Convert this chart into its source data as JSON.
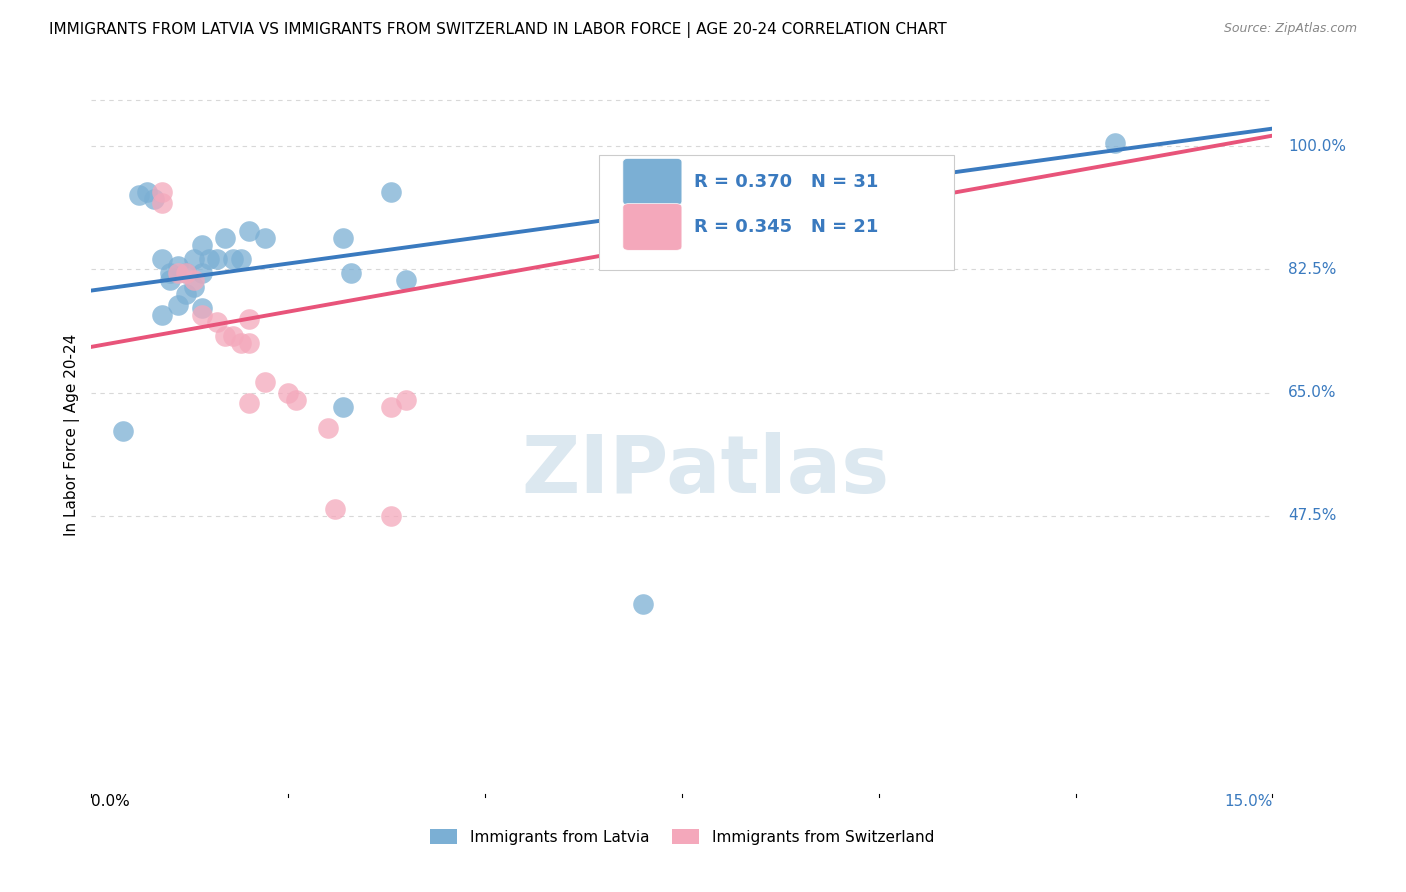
{
  "title": "IMMIGRANTS FROM LATVIA VS IMMIGRANTS FROM SWITZERLAND IN LABOR FORCE | AGE 20-24 CORRELATION CHART",
  "source": "Source: ZipAtlas.com",
  "ylabel": "In Labor Force | Age 20-24",
  "ytick_labels": [
    "100.0%",
    "82.5%",
    "65.0%",
    "47.5%"
  ],
  "ytick_values": [
    1.0,
    0.825,
    0.65,
    0.475
  ],
  "xlim": [
    0.0,
    0.15
  ],
  "ylim": [
    0.08,
    1.1
  ],
  "legend_r_latvia": "R = 0.370",
  "legend_n_latvia": "N = 31",
  "legend_r_switzerland": "R = 0.345",
  "legend_n_switzerland": "N = 21",
  "legend_label_latvia": "Immigrants from Latvia",
  "legend_label_switzerland": "Immigrants from Switzerland",
  "color_latvia": "#7bafd4",
  "color_switzerland": "#f4a8bb",
  "color_line_latvia": "#3a7abf",
  "color_line_switzerland": "#e8547a",
  "color_legend_text": "#3a7abf",
  "scatter_latvia_x": [
    0.004,
    0.006,
    0.007,
    0.008,
    0.009,
    0.009,
    0.01,
    0.01,
    0.011,
    0.011,
    0.012,
    0.012,
    0.013,
    0.013,
    0.014,
    0.014,
    0.014,
    0.015,
    0.016,
    0.017,
    0.018,
    0.019,
    0.02,
    0.022,
    0.032,
    0.033,
    0.038,
    0.04,
    0.07,
    0.13,
    0.032
  ],
  "scatter_latvia_y": [
    0.595,
    0.93,
    0.935,
    0.925,
    0.84,
    0.76,
    0.81,
    0.82,
    0.775,
    0.83,
    0.79,
    0.82,
    0.84,
    0.8,
    0.86,
    0.82,
    0.77,
    0.84,
    0.84,
    0.87,
    0.84,
    0.84,
    0.88,
    0.87,
    0.63,
    0.82,
    0.935,
    0.81,
    0.35,
    1.005,
    0.87
  ],
  "scatter_switzerland_x": [
    0.009,
    0.009,
    0.011,
    0.012,
    0.013,
    0.014,
    0.016,
    0.017,
    0.018,
    0.019,
    0.02,
    0.02,
    0.022,
    0.025,
    0.026,
    0.03,
    0.031,
    0.038,
    0.04,
    0.038,
    0.02
  ],
  "scatter_switzerland_y": [
    0.92,
    0.935,
    0.82,
    0.82,
    0.81,
    0.76,
    0.75,
    0.73,
    0.73,
    0.72,
    0.755,
    0.72,
    0.665,
    0.65,
    0.64,
    0.6,
    0.485,
    0.63,
    0.64,
    0.475,
    0.635
  ],
  "line_latvia_x0": 0.0,
  "line_latvia_y0": 0.795,
  "line_latvia_x1": 0.15,
  "line_latvia_y1": 1.025,
  "line_switzerland_x0": 0.0,
  "line_switzerland_y0": 0.715,
  "line_switzerland_x1": 0.15,
  "line_switzerland_y1": 1.015,
  "watermark_text": "ZIPatlas",
  "background_color": "#ffffff",
  "grid_color": "#d8d8d8"
}
